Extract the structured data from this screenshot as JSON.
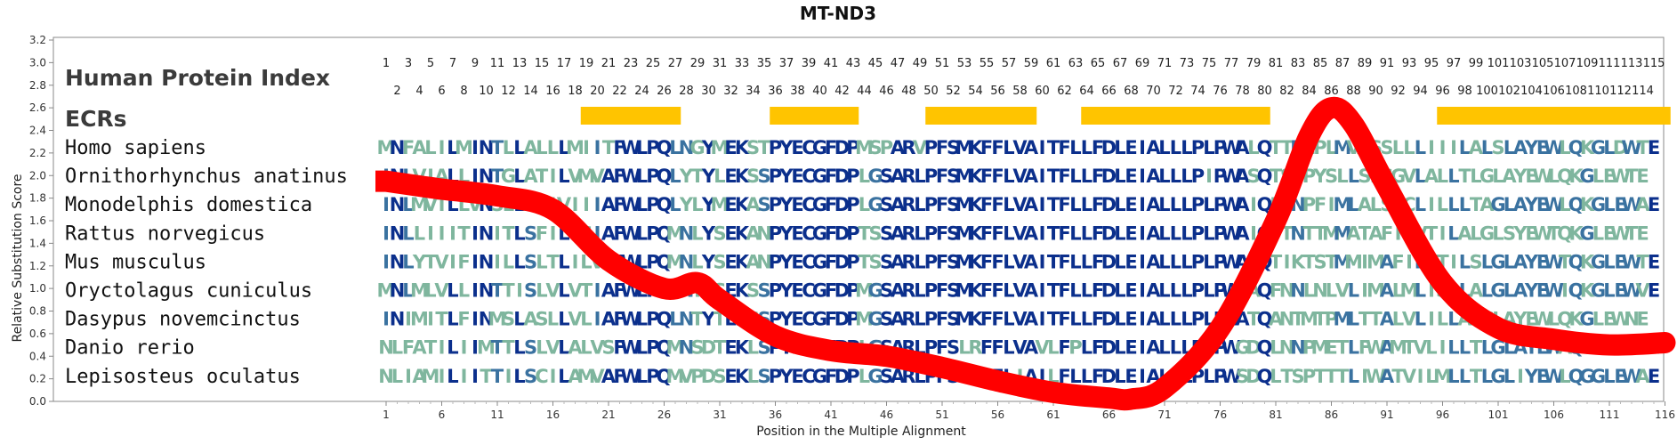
{
  "colors": {
    "conserved": "#0b2f8c",
    "mid": "#3a72a0",
    "variable": "#7fb69e",
    "curve": "#ff0000",
    "ecr": "#ffc400",
    "axis": "#888888"
  },
  "chart_data": {
    "type": "line",
    "title": "MT-ND3",
    "xlabel": "Position in the Multiple Alignment",
    "ylabel": "Relative Substitution Score",
    "xlim": [
      1,
      116
    ],
    "ylim": [
      0,
      3.2
    ],
    "y_ticks": [
      "0.0",
      "0.2",
      "0.4",
      "0.6",
      "0.8",
      "1.0",
      "1.2",
      "1.4",
      "1.6",
      "1.8",
      "2.0",
      "2.2",
      "2.4",
      "2.6",
      "2.8",
      "3.0",
      "3.2"
    ],
    "x_ticks": [
      1,
      6,
      11,
      16,
      21,
      26,
      31,
      36,
      41,
      46,
      51,
      56,
      61,
      66,
      71,
      76,
      81,
      86,
      91,
      96,
      101,
      106,
      111,
      116
    ],
    "series": [
      {
        "x": [
          1,
          6,
          11,
          16,
          21,
          26,
          29,
          31,
          36,
          41,
          46,
          51,
          56,
          61,
          66,
          68,
          71,
          76,
          81,
          84,
          86,
          88,
          91,
          96,
          101,
          106,
          111,
          116
        ],
        "y": [
          1.95,
          1.88,
          1.82,
          1.7,
          1.25,
          1.0,
          1.05,
          0.9,
          0.58,
          0.45,
          0.4,
          0.3,
          0.18,
          0.08,
          0.03,
          0.02,
          0.12,
          0.65,
          1.6,
          2.35,
          2.6,
          2.45,
          1.9,
          1.05,
          0.65,
          0.55,
          0.5,
          0.52
        ]
      }
    ],
    "human_protein_index_label": "Human Protein Index",
    "human_protein_index_odd": [
      1,
      3,
      5,
      7,
      9,
      11,
      13,
      15,
      17,
      19,
      21,
      23,
      25,
      27,
      29,
      31,
      33,
      35,
      37,
      39,
      41,
      43,
      45,
      47,
      49,
      51,
      53,
      55,
      57,
      59,
      61,
      63,
      65,
      67,
      69,
      71,
      73,
      75,
      77,
      79,
      81,
      83,
      85,
      87,
      89,
      91,
      93,
      95,
      97,
      99,
      101,
      103,
      105,
      107,
      109,
      111,
      113,
      115
    ],
    "human_protein_index_even": [
      2,
      4,
      6,
      8,
      10,
      12,
      14,
      16,
      18,
      20,
      22,
      24,
      26,
      28,
      30,
      32,
      34,
      36,
      38,
      40,
      42,
      44,
      46,
      48,
      50,
      52,
      54,
      56,
      58,
      60,
      62,
      64,
      66,
      68,
      70,
      72,
      74,
      76,
      78,
      80,
      82,
      84,
      86,
      88,
      90,
      92,
      94,
      96,
      98,
      100,
      102,
      104,
      106,
      108,
      110,
      112,
      114
    ],
    "ecr_label": "ECRs",
    "ecrs": [
      [
        19,
        27
      ],
      [
        36,
        43
      ],
      [
        50,
        59
      ],
      [
        64,
        80
      ],
      [
        96,
        116
      ]
    ],
    "alignment": [
      {
        "species": "Homo sapiens",
        "sequence": "MNFALILMINTLLALLLMIITFWLPQLNGYMEKSTPYECGFDPMSPARVPFSMKFFLVAITFLLFDLEIALLLPLPWALQTTNLPLMVMSSLLLIIILALSLAYEWLQKGLDWTE"
      },
      {
        "species": "Ornithorhynchus anatinus",
        "sequence": "INLVIALLINTGLATILVMVAFWLPQLYTYLEKSSPYECGFDPLGSARLPFSMKFFLVAITFLLFDLEIALLLPIPWASQTSSPYSLLSLSGVLALLTLGLAYEWLQKGLEWTE"
      },
      {
        "species": "Monodelphis domestica",
        "sequence": "INLMVTLLVNSLLATIVIIIAFWLPQLYLYMEKASPYECGFDPLGSARLPFSMKFFLVAITFLLFDLEIALLLPLPWAIQLPNPFIMLALSYCLILLLTAGLAYEWLQKGLEWAE"
      },
      {
        "species": "Rattus norvegicus",
        "sequence": "INLLIIITINITLSFILISIAFWLPQMNLYSEKANPYECGFDPTSSARLPFSMKFFLVAITFLLFDLEIALLLPLPWAIQTTNTTMMATAFILVTILALGLSYEWTQKGLEWTE"
      },
      {
        "species": "Mus musculus",
        "sequence": "INLYTVIFINILLSLTLILVAFWLPQMNLYSEKANPYECGFDPTSSARLPFSMKFFLVAITFLLFDLEIALLLPLPWAIQTIKTSTMMIMAFILVTILSLGLAYEWTQKGLEWTE"
      },
      {
        "species": "Oryctolagus cuniculus",
        "sequence": "MNLMLVLLINTTISLVLVTIAFWLPQLNIYSEKSSPYECGFDPMGSARLPFSMKFFLVAITFLLFDLEIALLLPLPWAAQFNNLNLVLIMALMLISILALGLAYEWIQKGLEWVE"
      },
      {
        "species": "Dasypus novemcinctus",
        "sequence": "INIMITLFINMSLASLLVLIAFWLPQLNTYTEKSSPYECGFDPMGSARLPFSMKFFLVAITFLLFDLEIALLLPLPWATQANTMTPMLTTALVLILLALGLAYEWLQKGLEWNE"
      },
      {
        "species": "Danio rerio",
        "sequence": "NLFATILIIMTTLSLVLALVSFWLPQMNSDTEKLSPYECGFDPLGSARLPFSLRFFLVAVLFPLFDLEIALLLPLPWGDQLNNPMETLFWAMTVLILLTLGLAYEWAQGGLEWAE"
      },
      {
        "species": "Lepisosteus oculatus",
        "sequence": "NLIAMILIITTILSCILAMVAFWLPQMVPDSEKLSPYECGFDPLGSARLPFSLRFFLIAILFLLFDLEIALLLPLPWSDQLTSPTTTLIWATVILMLLTLGLIYEWLQGGLEWAE"
      }
    ]
  }
}
